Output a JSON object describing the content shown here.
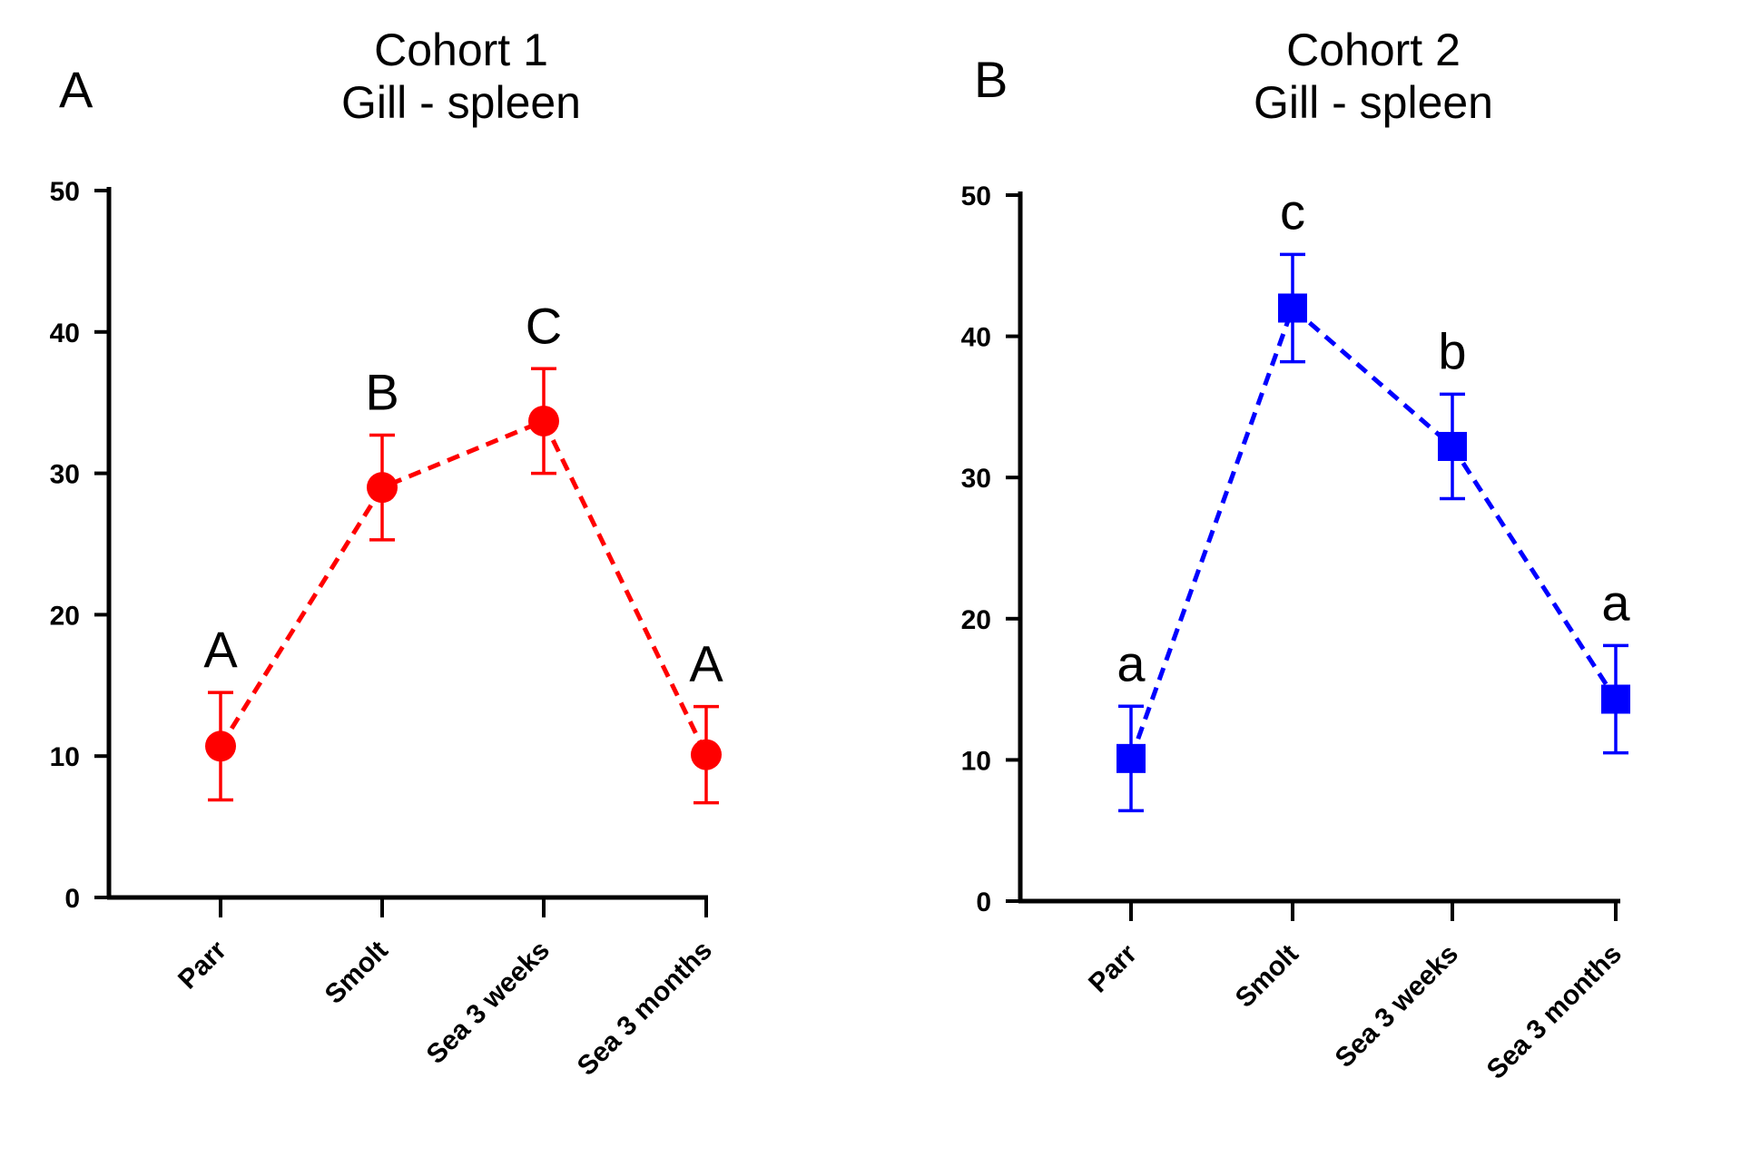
{
  "chart_data": [
    {
      "type": "line",
      "panel": "A",
      "title": "Cohort 1",
      "subtitle": "Gill - spleen",
      "xlabel": "",
      "ylabel": "",
      "categories": [
        "Parr",
        "Smolt",
        "Sea 3 weeks",
        "Sea 3 months"
      ],
      "ylim": [
        0,
        50
      ],
      "yticks": [
        "0",
        "10",
        "20",
        "30",
        "40",
        "50"
      ],
      "series": [
        {
          "name": "Cohort 1",
          "marker": "circle",
          "color": "#ff0000",
          "line_style": "dashed",
          "values": [
            10.7,
            29.0,
            33.7,
            10.1
          ],
          "error": [
            3.8,
            3.7,
            3.7,
            3.4
          ],
          "significance": [
            "A",
            "B",
            "C",
            "A"
          ]
        }
      ]
    },
    {
      "type": "line",
      "panel": "B",
      "title": "Cohort 2",
      "subtitle": "Gill - spleen",
      "xlabel": "",
      "ylabel": "",
      "categories": [
        "Parr",
        "Smolt",
        "Sea 3 weeks",
        "Sea 3 months"
      ],
      "ylim": [
        0,
        50
      ],
      "yticks": [
        "0",
        "10",
        "20",
        "30",
        "40",
        "50"
      ],
      "series": [
        {
          "name": "Cohort 2",
          "marker": "square",
          "color": "#0000ff",
          "line_style": "dashed",
          "values": [
            10.1,
            42.0,
            32.2,
            14.3
          ],
          "error": [
            3.7,
            3.8,
            3.7,
            3.8
          ],
          "significance": [
            "a",
            "c",
            "b",
            "a"
          ]
        }
      ]
    }
  ]
}
